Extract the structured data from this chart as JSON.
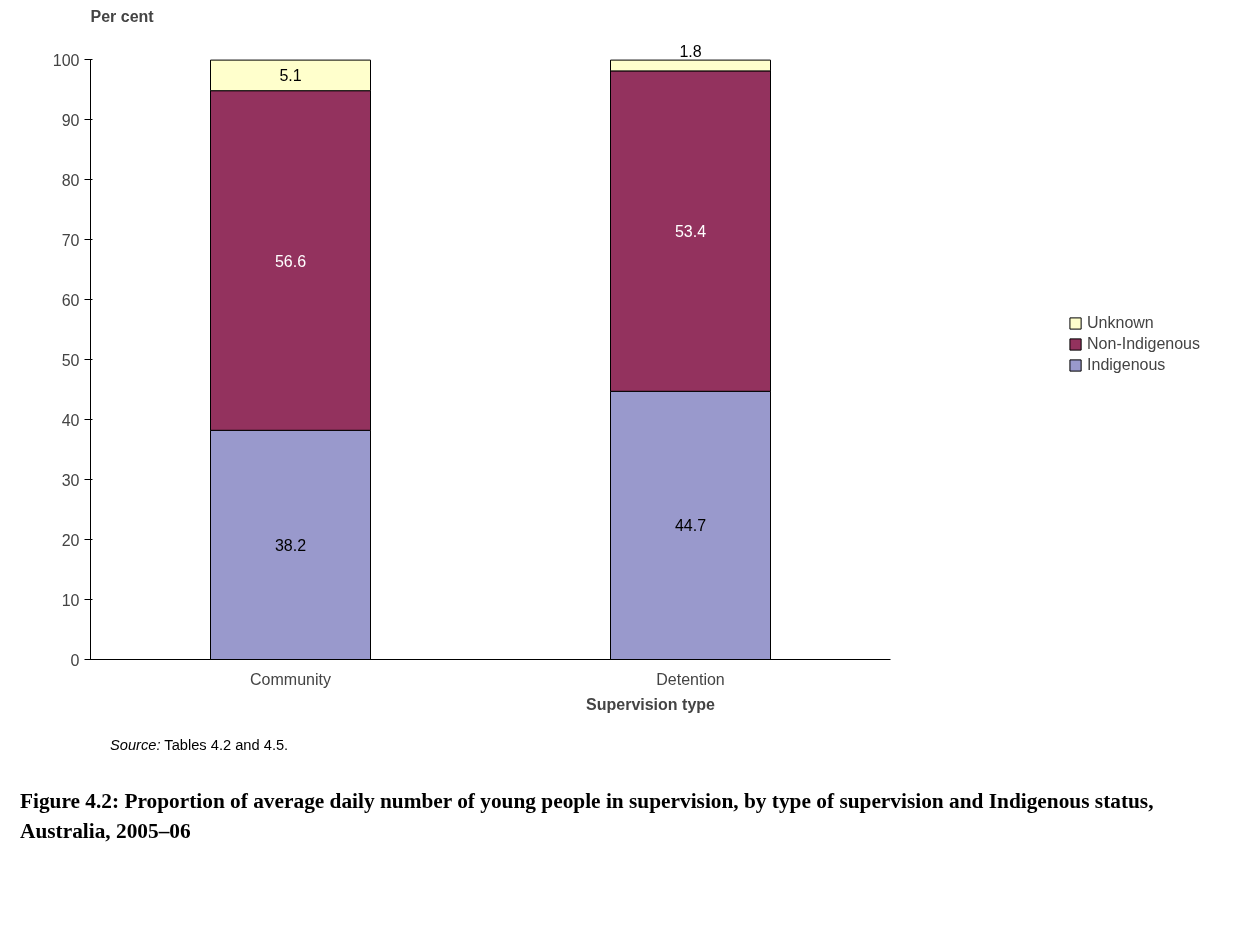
{
  "chart_data": {
    "type": "bar",
    "stacked": true,
    "title": "Figure 4.2: Proportion of average daily number of young people in supervision, by type of supervision and Indigenous status, Australia, 2005–06",
    "xlabel": "Supervision type",
    "ylabel": "Per cent",
    "categories": [
      "Community",
      "Detention"
    ],
    "series": [
      {
        "name": "Indigenous",
        "color": "#9999cc",
        "values": [
          38.2,
          44.7
        ]
      },
      {
        "name": "Non-Indigenous",
        "color": "#93325e",
        "values": [
          56.6,
          53.4
        ]
      },
      {
        "name": "Unknown",
        "color": "#ffffcc",
        "values": [
          5.1,
          1.8
        ]
      }
    ],
    "ylim": [
      0,
      100
    ],
    "yticks": [
      0,
      10,
      20,
      30,
      40,
      50,
      60,
      70,
      80,
      90,
      100
    ],
    "data_labels": true,
    "legend": "right",
    "grid": false,
    "annotations": [
      "Source: Tables 4.2 and 4.5."
    ]
  }
}
